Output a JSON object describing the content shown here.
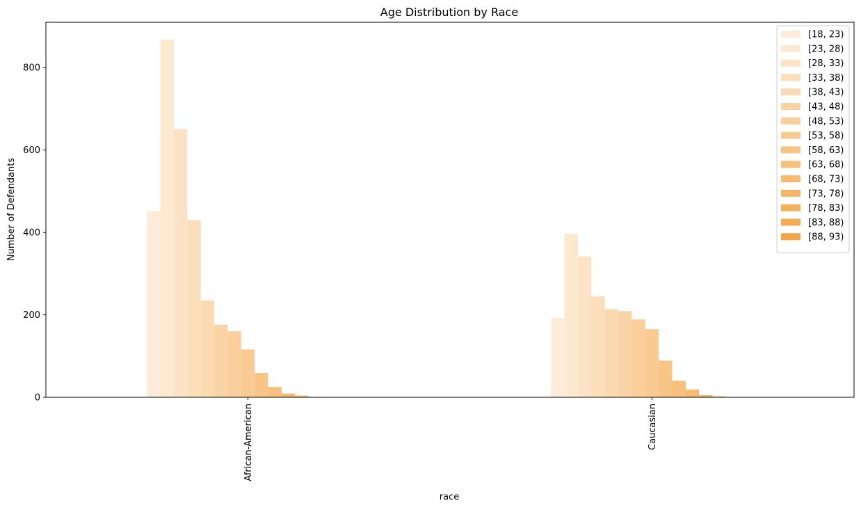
{
  "chart_data": {
    "type": "bar",
    "title": "Age Distribution by Race",
    "xlabel": "race",
    "ylabel": "Number of Defendants",
    "categories": [
      "African-American",
      "Caucasian"
    ],
    "ylim": [
      0,
      910
    ],
    "yticks": [
      0,
      200,
      400,
      600,
      800
    ],
    "grid": false,
    "legend_position": "top-right",
    "series": [
      {
        "name": "[18, 23)",
        "values": [
          452,
          192
        ],
        "color": "#fdecd9"
      },
      {
        "name": "[23, 28)",
        "values": [
          868,
          397
        ],
        "color": "#fde8d0"
      },
      {
        "name": "[28, 33)",
        "values": [
          651,
          342
        ],
        "color": "#fce3c6"
      },
      {
        "name": "[33, 38)",
        "values": [
          430,
          245
        ],
        "color": "#fcdebb"
      },
      {
        "name": "[38, 43)",
        "values": [
          235,
          214
        ],
        "color": "#fbd9b1"
      },
      {
        "name": "[43, 48)",
        "values": [
          176,
          209
        ],
        "color": "#fad4a6"
      },
      {
        "name": "[48, 53)",
        "values": [
          160,
          189
        ],
        "color": "#facf9c"
      },
      {
        "name": "[53, 58)",
        "values": [
          116,
          165
        ],
        "color": "#f9ca91"
      },
      {
        "name": "[58, 63)",
        "values": [
          59,
          89
        ],
        "color": "#f8c587"
      },
      {
        "name": "[63, 68)",
        "values": [
          25,
          40
        ],
        "color": "#f8c07c"
      },
      {
        "name": "[68, 73)",
        "values": [
          9,
          19
        ],
        "color": "#f7ba71"
      },
      {
        "name": "[73, 78)",
        "values": [
          4,
          5
        ],
        "color": "#f6b566"
      },
      {
        "name": "[78, 83)",
        "values": [
          1,
          2
        ],
        "color": "#f6b05c"
      },
      {
        "name": "[83, 88)",
        "values": [
          0,
          0
        ],
        "color": "#f5ab51"
      },
      {
        "name": "[88, 93)",
        "values": [
          0,
          0
        ],
        "color": "#f4a646"
      }
    ]
  }
}
